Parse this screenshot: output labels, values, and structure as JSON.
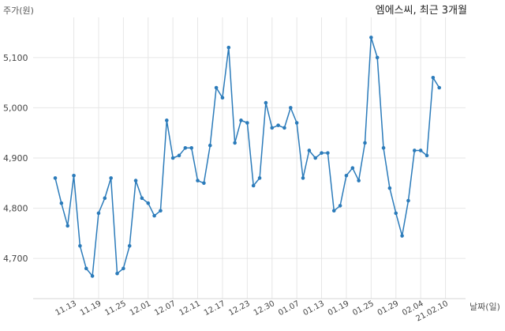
{
  "chart_data": {
    "type": "line",
    "title": "엠에스씨, 최근 3개월",
    "ylabel": "주가(원)",
    "xlabel": "날짜(일)",
    "ylim": [
      4620,
      5180
    ],
    "y_ticks": [
      4700,
      4800,
      4900,
      5000,
      5100
    ],
    "y_tick_labels": [
      "4,700",
      "4,800",
      "4,900",
      "5,000",
      "5,100"
    ],
    "x_tick_labels": [
      "11.13",
      "11.19",
      "11.25",
      "12.01",
      "12.07",
      "12.11",
      "12.17",
      "12.23",
      "12.30",
      "01.07",
      "01.13",
      "01.19",
      "01.25",
      "01.29",
      "02.04",
      "21.02.10"
    ],
    "x_tick_indices": [
      3,
      7,
      11,
      15,
      19,
      23,
      27,
      31,
      35,
      39,
      43,
      47,
      51,
      55,
      59,
      63
    ],
    "grid": true,
    "color": "#2b7bba",
    "series": [
      {
        "values": [
          4860,
          4810,
          4765,
          4865,
          4725,
          4680,
          4665,
          4790,
          4820,
          4860,
          4670,
          4680,
          4725,
          4855,
          4820,
          4810,
          4785,
          4795,
          4975,
          4900,
          4905,
          4920,
          4920,
          4855,
          4850,
          4925,
          5040,
          5020,
          5120,
          4930,
          4975,
          4970,
          4845,
          4860,
          5010,
          4960,
          4965,
          4960,
          5000,
          4970,
          4860,
          4915,
          4900,
          4910,
          4910,
          4795,
          4805,
          4865,
          4880,
          4855,
          4930,
          5140,
          5100,
          4920,
          4840,
          4790,
          4745,
          4815,
          4915,
          4915,
          4905,
          5060,
          5040
        ]
      }
    ]
  }
}
